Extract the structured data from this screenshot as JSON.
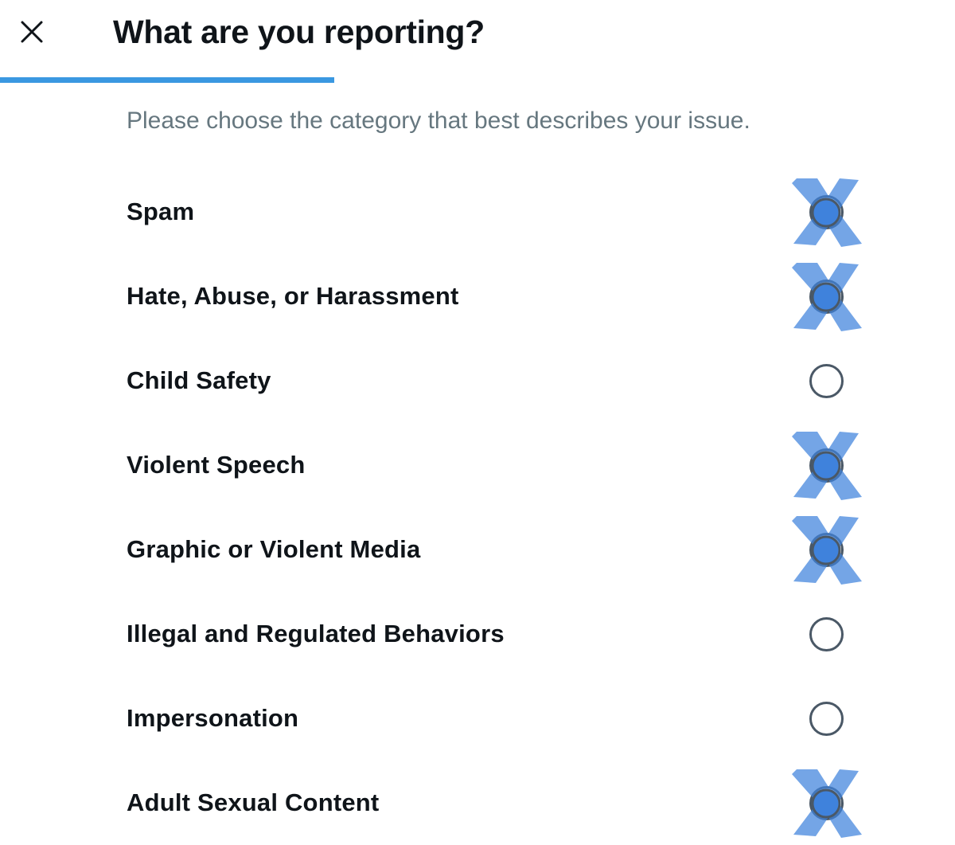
{
  "dialog": {
    "title": "What are you reporting?",
    "subtitle": "Please choose the category that best describes your issue.",
    "progress": 0.35
  },
  "options": [
    {
      "label": "Spam",
      "marked": true
    },
    {
      "label": "Hate, Abuse, or Harassment",
      "marked": true
    },
    {
      "label": "Child Safety",
      "marked": false
    },
    {
      "label": "Violent Speech",
      "marked": true
    },
    {
      "label": "Graphic or Violent Media",
      "marked": true
    },
    {
      "label": "Illegal and Regulated Behaviors",
      "marked": false
    },
    {
      "label": "Impersonation",
      "marked": false
    },
    {
      "label": "Adult Sexual Content",
      "marked": true
    }
  ],
  "colors": {
    "accent": "#3a98e1",
    "mark": "#3f82dc",
    "radio_border": "#4a5866",
    "subtitle": "#66777f"
  },
  "icons": {
    "close": "close-icon",
    "mark": "x-mark-icon"
  }
}
